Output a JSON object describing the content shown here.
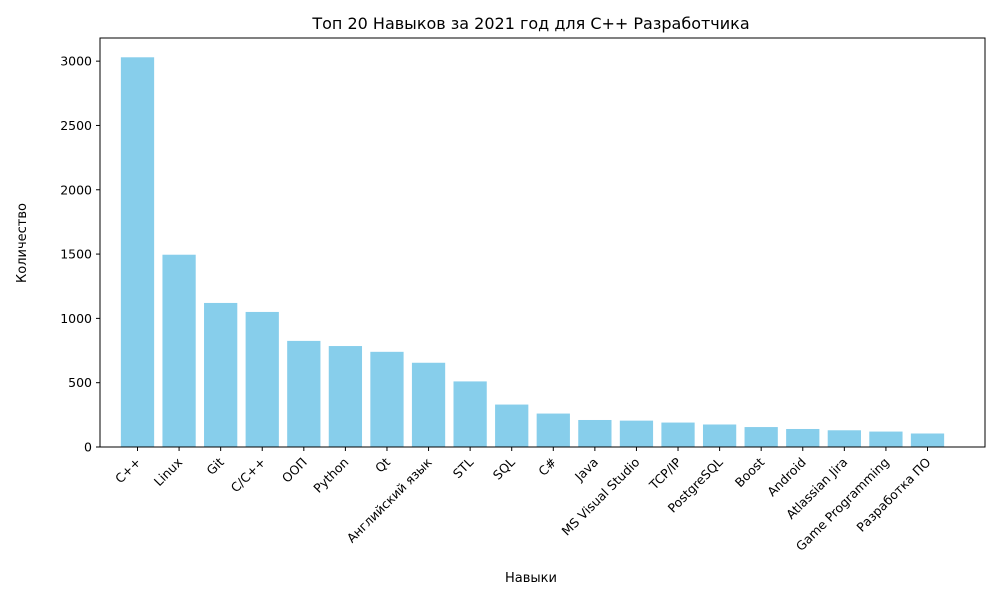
{
  "chart_data": {
    "type": "bar",
    "title": "Топ 20 Навыков за 2021 год для C++ Разработчика",
    "xlabel": "Навыки",
    "ylabel": "Количество",
    "ylim": [
      0,
      3180
    ],
    "yticks": [
      0,
      500,
      1000,
      1500,
      2000,
      2500,
      3000
    ],
    "grid": false,
    "bar_color": "#87ceeb",
    "categories": [
      "C++",
      "Linux",
      "Git",
      "C/C++",
      "ООП",
      "Python",
      "Qt",
      "Английский язык",
      "STL",
      "SQL",
      "C#",
      "Java",
      "MS Visual Studio",
      "TCP/IP",
      "PostgreSQL",
      "Boost",
      "Android",
      "Atlassian Jira",
      "Game Programming",
      "Разработка ПО"
    ],
    "values": [
      3030,
      1495,
      1120,
      1050,
      825,
      785,
      740,
      655,
      510,
      330,
      260,
      210,
      205,
      190,
      175,
      155,
      140,
      130,
      120,
      105
    ]
  }
}
